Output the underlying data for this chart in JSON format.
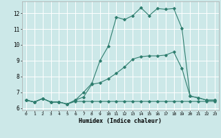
{
  "xlabel": "Humidex (Indice chaleur)",
  "bg_color": "#cce8e8",
  "grid_color": "#ffffff",
  "line_color": "#2e7d6e",
  "xlim": [
    -0.5,
    23.5
  ],
  "ylim": [
    5.85,
    12.75
  ],
  "xticks": [
    0,
    1,
    2,
    3,
    4,
    5,
    6,
    7,
    8,
    9,
    10,
    11,
    12,
    13,
    14,
    15,
    16,
    17,
    18,
    19,
    20,
    21,
    22,
    23
  ],
  "yticks": [
    6,
    7,
    8,
    9,
    10,
    11,
    12
  ],
  "line1_x": [
    0,
    1,
    2,
    3,
    4,
    5,
    6,
    7,
    8,
    9,
    10,
    11,
    12,
    13,
    14,
    15,
    16,
    17,
    18,
    19,
    20,
    21,
    22,
    23
  ],
  "line1_y": [
    6.5,
    6.38,
    6.6,
    6.38,
    6.38,
    6.25,
    6.42,
    6.42,
    6.42,
    6.42,
    6.42,
    6.42,
    6.42,
    6.42,
    6.42,
    6.42,
    6.42,
    6.42,
    6.42,
    6.42,
    6.42,
    6.42,
    6.42,
    6.42
  ],
  "line2_x": [
    0,
    1,
    2,
    3,
    4,
    5,
    6,
    7,
    8,
    9,
    10,
    11,
    12,
    13,
    14,
    15,
    16,
    17,
    18,
    19,
    20,
    21,
    22,
    23
  ],
  "line2_y": [
    6.5,
    6.38,
    6.6,
    6.38,
    6.38,
    6.25,
    6.5,
    6.7,
    7.5,
    7.6,
    7.85,
    8.2,
    8.6,
    9.1,
    9.25,
    9.3,
    9.3,
    9.35,
    9.55,
    8.5,
    6.75,
    6.65,
    6.5,
    6.5
  ],
  "line3_x": [
    0,
    1,
    2,
    3,
    4,
    5,
    6,
    7,
    8,
    9,
    10,
    11,
    12,
    13,
    14,
    15,
    16,
    17,
    18,
    19,
    20,
    21,
    22,
    23
  ],
  "line3_y": [
    6.5,
    6.38,
    6.6,
    6.38,
    6.38,
    6.25,
    6.5,
    7.0,
    7.55,
    9.0,
    9.9,
    11.75,
    11.6,
    11.85,
    12.35,
    11.85,
    12.3,
    12.25,
    12.3,
    11.05,
    6.75,
    6.65,
    6.5,
    6.5
  ]
}
